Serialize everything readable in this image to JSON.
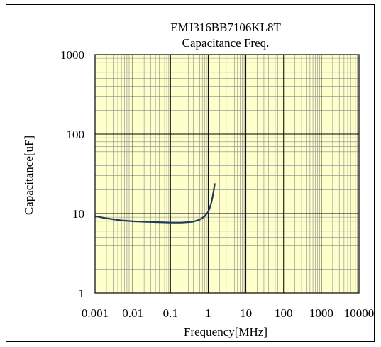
{
  "chart_data": {
    "type": "line",
    "title": "EMJ316BB7106KL8T",
    "subtitle": "Capacitance Freq.",
    "xlabel": "Frequency[MHz]",
    "ylabel": "Capacitance[uF]",
    "x_scale": "log",
    "y_scale": "log",
    "xlim": [
      0.001,
      10000
    ],
    "ylim": [
      1,
      1000
    ],
    "x_ticks": [
      "0.001",
      "0.01",
      "0.1",
      "1",
      "10",
      "100",
      "1000",
      "10000"
    ],
    "y_ticks": [
      "1",
      "10",
      "100",
      "1000"
    ],
    "grid": true,
    "plot_background": "#ffffcc",
    "series": [
      {
        "color": "#1f3a5f",
        "x": [
          0.001,
          0.002,
          0.005,
          0.01,
          0.02,
          0.05,
          0.1,
          0.2,
          0.4,
          0.6,
          0.8,
          1.0,
          1.1,
          1.2,
          1.3,
          1.4,
          1.5
        ],
        "y": [
          9.3,
          8.7,
          8.2,
          8.0,
          7.9,
          7.8,
          7.7,
          7.7,
          7.9,
          8.4,
          9.2,
          10.5,
          11.8,
          13.5,
          16.0,
          19.5,
          24.0
        ]
      }
    ]
  }
}
